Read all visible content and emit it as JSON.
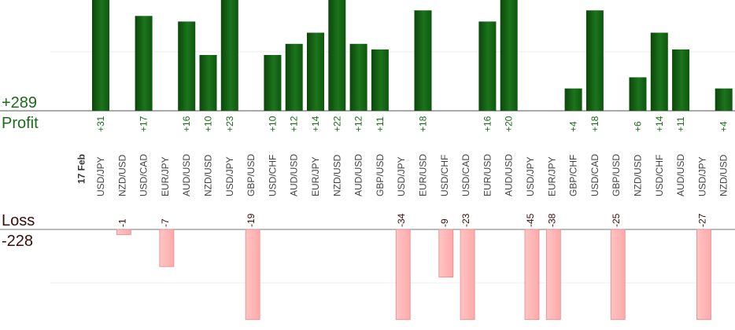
{
  "summary": {
    "profit_total": "+289",
    "profit_label": "Profit",
    "loss_label": "Loss",
    "loss_total": "-228"
  },
  "colors": {
    "profit_bar_dark": "#0d4d0d",
    "profit_bar_light": "#1f7a1f",
    "profit_text": "#1a6b1a",
    "loss_bar": "#ffb6b6",
    "loss_bar_edge": "#e08a8a",
    "loss_text": "#3a0d0d"
  },
  "chart_data": {
    "type": "bar",
    "title": "",
    "date_label": "17 Feb",
    "categories": [
      "USD/JPY",
      "NZD/USD",
      "USD/CAD",
      "EUR/JPY",
      "AUD/USD",
      "NZD/USD",
      "USD/JPY",
      "GBP/USD",
      "USD/CHF",
      "AUD/USD",
      "EUR/JPY",
      "NZD/USD",
      "AUD/USD",
      "GBP/USD",
      "USD/JPY",
      "EUR/USD",
      "USD/CHF",
      "USD/CAD",
      "EUR/USD",
      "AUD/USD",
      "USD/JPY",
      "EUR/JPY",
      "GBP/CHF",
      "USD/CAD",
      "GBP/USD",
      "NZD/USD",
      "USD/CHF",
      "AUD/USD",
      "USD/JPY",
      "NZD/USD"
    ],
    "series": [
      {
        "values": [
          31,
          -1,
          17,
          -7,
          16,
          10,
          23,
          -19,
          10,
          12,
          14,
          22,
          12,
          11,
          -34,
          18,
          -9,
          -23,
          16,
          20,
          -45,
          -38,
          4,
          18,
          -25,
          6,
          14,
          11,
          -27,
          4
        ]
      }
    ],
    "value_labels": [
      "+31",
      "-1",
      "+17",
      "-7",
      "+16",
      "+10",
      "+23",
      "-19",
      "+10",
      "+12",
      "+14",
      "+22",
      "+12",
      "+11",
      "-34",
      "+18",
      "-9",
      "-23",
      "+16",
      "+20",
      "-45",
      "-38",
      "+4",
      "+18",
      "-25",
      "+6",
      "+14",
      "+11",
      "-27",
      "+4"
    ],
    "profit_ylim": [
      0,
      20
    ],
    "loss_ylim": [
      -17,
      0
    ],
    "grid": true,
    "legend": "none"
  }
}
